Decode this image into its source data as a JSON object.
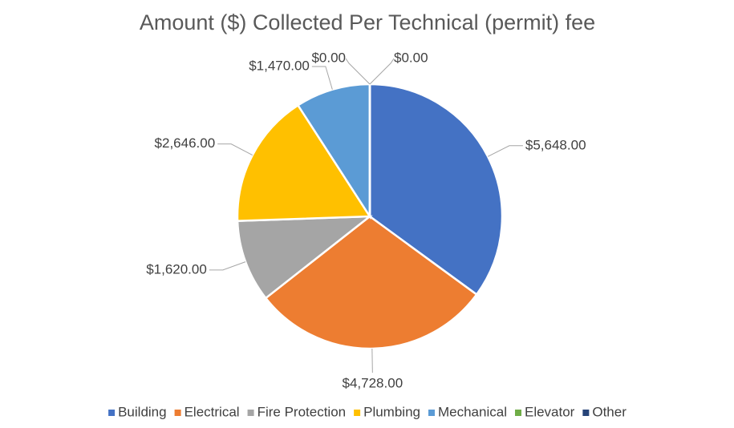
{
  "chart_data": {
    "type": "pie",
    "title": "Amount ($) Collected Per Technical (permit) fee",
    "categories": [
      "Building",
      "Electrical",
      "Fire Protection",
      "Plumbing",
      "Mechanical",
      "Elevator",
      "Other"
    ],
    "values": [
      5648,
      4728,
      1620,
      2646,
      1470,
      0,
      0
    ],
    "value_labels": [
      "$5,648.00",
      "$4,728.00",
      "$1,620.00",
      "$2,646.00",
      "$1,470.00",
      "$0.00",
      "$0.00"
    ],
    "colors": [
      "#4472c4",
      "#ed7d31",
      "#a5a5a5",
      "#ffc000",
      "#5b9bd5",
      "#70ad47",
      "#264478"
    ],
    "legend": "bottom"
  }
}
